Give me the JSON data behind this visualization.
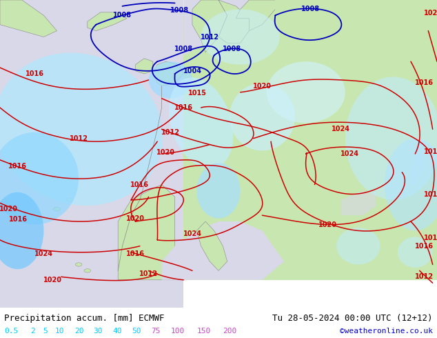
{
  "title_left": "Precipitation accum. [mm] ECMWF",
  "title_right": "Tu 28-05-2024 00:00 UTC (12+12)",
  "watermark": "©weatheronline.co.uk",
  "legend_values": [
    "0.5",
    "2",
    "5",
    "10",
    "20",
    "30",
    "40",
    "50",
    "75",
    "100",
    "150",
    "200"
  ],
  "ocean_color": "#d8d8e8",
  "land_color": "#c8e6b0",
  "precip_colors": [
    "#c0eeff",
    "#a0e0ff",
    "#80d0ff",
    "#50c0ff",
    "#20a8ff",
    "#0080ee"
  ],
  "red_isobar": "#cc0000",
  "blue_isobar": "#0000bb",
  "coast_color": "#888888",
  "title_color": "#000000",
  "title_fontsize": 9,
  "watermark_color": "#0000cc",
  "legend_text_colors": {
    "0.5": "#00ccff",
    "2": "#00ccff",
    "5": "#00ccff",
    "10": "#00ccff",
    "20": "#00ccff",
    "30": "#00ccff",
    "40": "#00ccff",
    "50": "#00ccff",
    "75": "#cc44cc",
    "100": "#cc44cc",
    "150": "#cc44cc",
    "200": "#cc44cc"
  },
  "fig_width": 6.34,
  "fig_height": 4.9,
  "dpi": 100
}
